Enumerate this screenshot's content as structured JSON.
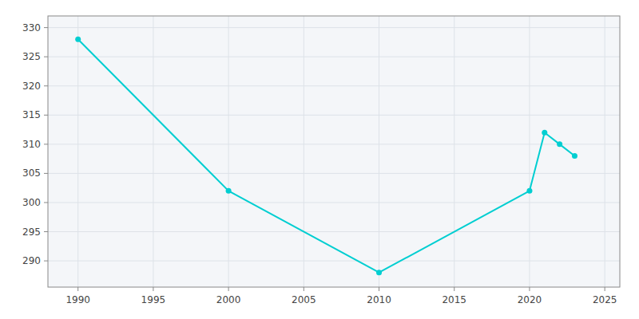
{
  "chart_data": {
    "type": "line",
    "x": [
      1990,
      2000,
      2010,
      2020,
      2021,
      2022,
      2023
    ],
    "values": [
      328,
      302,
      288,
      302,
      312,
      310,
      308
    ],
    "color": "#00CED1",
    "marker": "circle",
    "xlim": [
      1988,
      2026
    ],
    "ylim": [
      285.5,
      332
    ],
    "xticks": [
      1990,
      1995,
      2000,
      2005,
      2010,
      2015,
      2020,
      2025
    ],
    "yticks": [
      290,
      295,
      300,
      305,
      310,
      315,
      320,
      325,
      330
    ],
    "grid": true
  }
}
